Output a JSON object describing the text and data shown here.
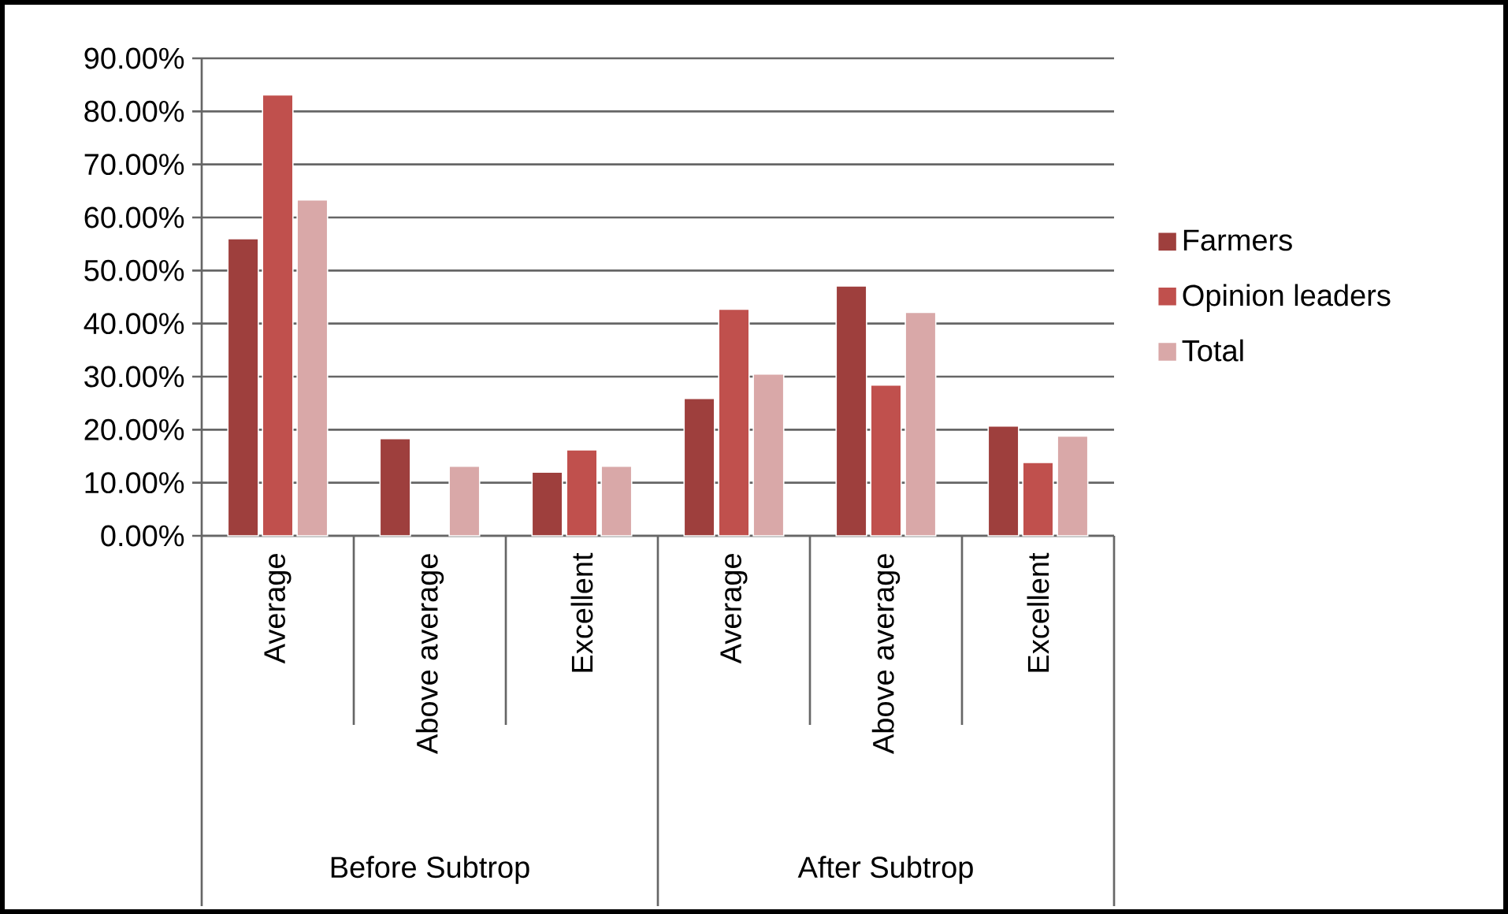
{
  "chart_data": {
    "type": "bar",
    "categories": [
      "Average",
      "Above average",
      "Excellent",
      "Average",
      "Above average",
      "Excellent"
    ],
    "series": [
      {
        "name": "Farmers",
        "color": "#9e3f3d",
        "values": [
          56,
          18.3,
          12,
          25.9,
          47.1,
          20.7
        ]
      },
      {
        "name": "Opinion leaders",
        "color": "#c0504d",
        "values": [
          83.1,
          null,
          16.2,
          42.7,
          28.4,
          13.8
        ]
      },
      {
        "name": "Total",
        "color": "#d9a8a8",
        "values": [
          63.3,
          13.1,
          13.1,
          30.5,
          42.1,
          18.8
        ]
      }
    ],
    "ylim": [
      0,
      90
    ],
    "yticks": [
      {
        "value": 0,
        "label": "0.00%"
      },
      {
        "value": 10,
        "label": "10.00%"
      },
      {
        "value": 20,
        "label": "20.00%"
      },
      {
        "value": 30,
        "label": "30.00%"
      },
      {
        "value": 40,
        "label": "40.00%"
      },
      {
        "value": 50,
        "label": "50.00%"
      },
      {
        "value": 60,
        "label": "60.00%"
      },
      {
        "value": 70,
        "label": "70.00%"
      },
      {
        "value": 80,
        "label": "80.00%"
      },
      {
        "value": 90,
        "label": "90.00%"
      }
    ],
    "grid": "y",
    "legend": "right",
    "annotations": [
      "Before Subtrop",
      "After Subtrop"
    ]
  }
}
